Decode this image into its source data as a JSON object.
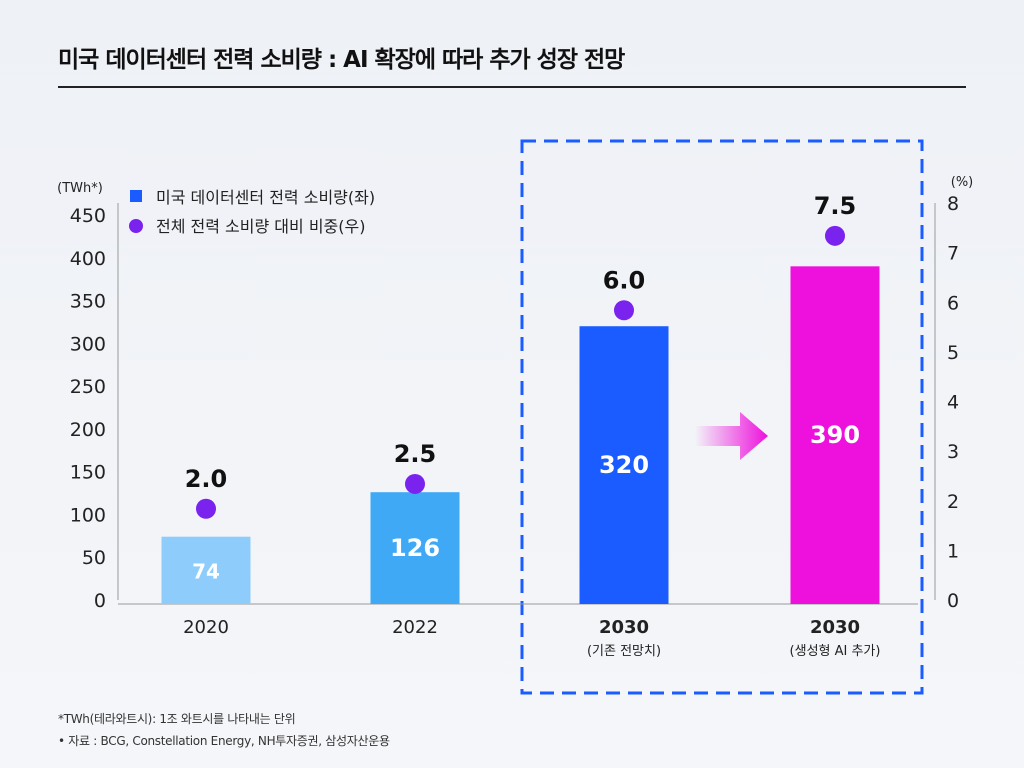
{
  "title": "미국 데이터센터 전력 소비량 : AI 확장에 따라 추가 성장 전망",
  "notes": [
    "*TWh(테라와트시): 1조 와트시를 나타내는 단위",
    "• 자료 : BCG, Constellation Energy, NH투자증권, 삼성자산운용"
  ],
  "chart_data": {
    "type": "bar",
    "categories": [
      {
        "label": "2020",
        "sub": ""
      },
      {
        "label": "2022",
        "sub": ""
      },
      {
        "label": "2030",
        "sub": "(기존 전망치)"
      },
      {
        "label": "2030",
        "sub": "(생성형 AI 추가)"
      }
    ],
    "series": [
      {
        "name": "미국 데이터센터 전력 소비량(좌)",
        "type": "bar",
        "axis": "left",
        "values": [
          74,
          126,
          320,
          390
        ],
        "colors": [
          "#8ecdfb",
          "#3fa9f5",
          "#1a5cff",
          "#ee11dd"
        ]
      },
      {
        "name": "전체 전력 소비량 대비 비중(우)",
        "type": "scatter",
        "axis": "right",
        "values": [
          2.0,
          2.5,
          6.0,
          7.5
        ],
        "labels": [
          "2.0",
          "2.5",
          "6.0",
          "7.5"
        ],
        "color": "#7a22ee"
      }
    ],
    "left_axis": {
      "unit": "(TWh*)",
      "range": [
        0,
        450
      ],
      "ticks": [
        "0",
        "50",
        "100",
        "150",
        "200",
        "250",
        "300",
        "350",
        "400",
        "450"
      ]
    },
    "right_axis": {
      "unit": "(%)",
      "range": [
        0,
        8
      ],
      "ticks": [
        "0",
        "1",
        "2",
        "3",
        "4",
        "5",
        "6",
        "7",
        "8"
      ]
    },
    "legend_position": "top-left",
    "highlight": {
      "style": "dashed-box",
      "color": "#1a5cff",
      "covers": [
        "2030 (기존 전망치)",
        "2030 (생성형 AI 추가)"
      ]
    },
    "arrow_color": "#ee11dd",
    "grid": false
  }
}
